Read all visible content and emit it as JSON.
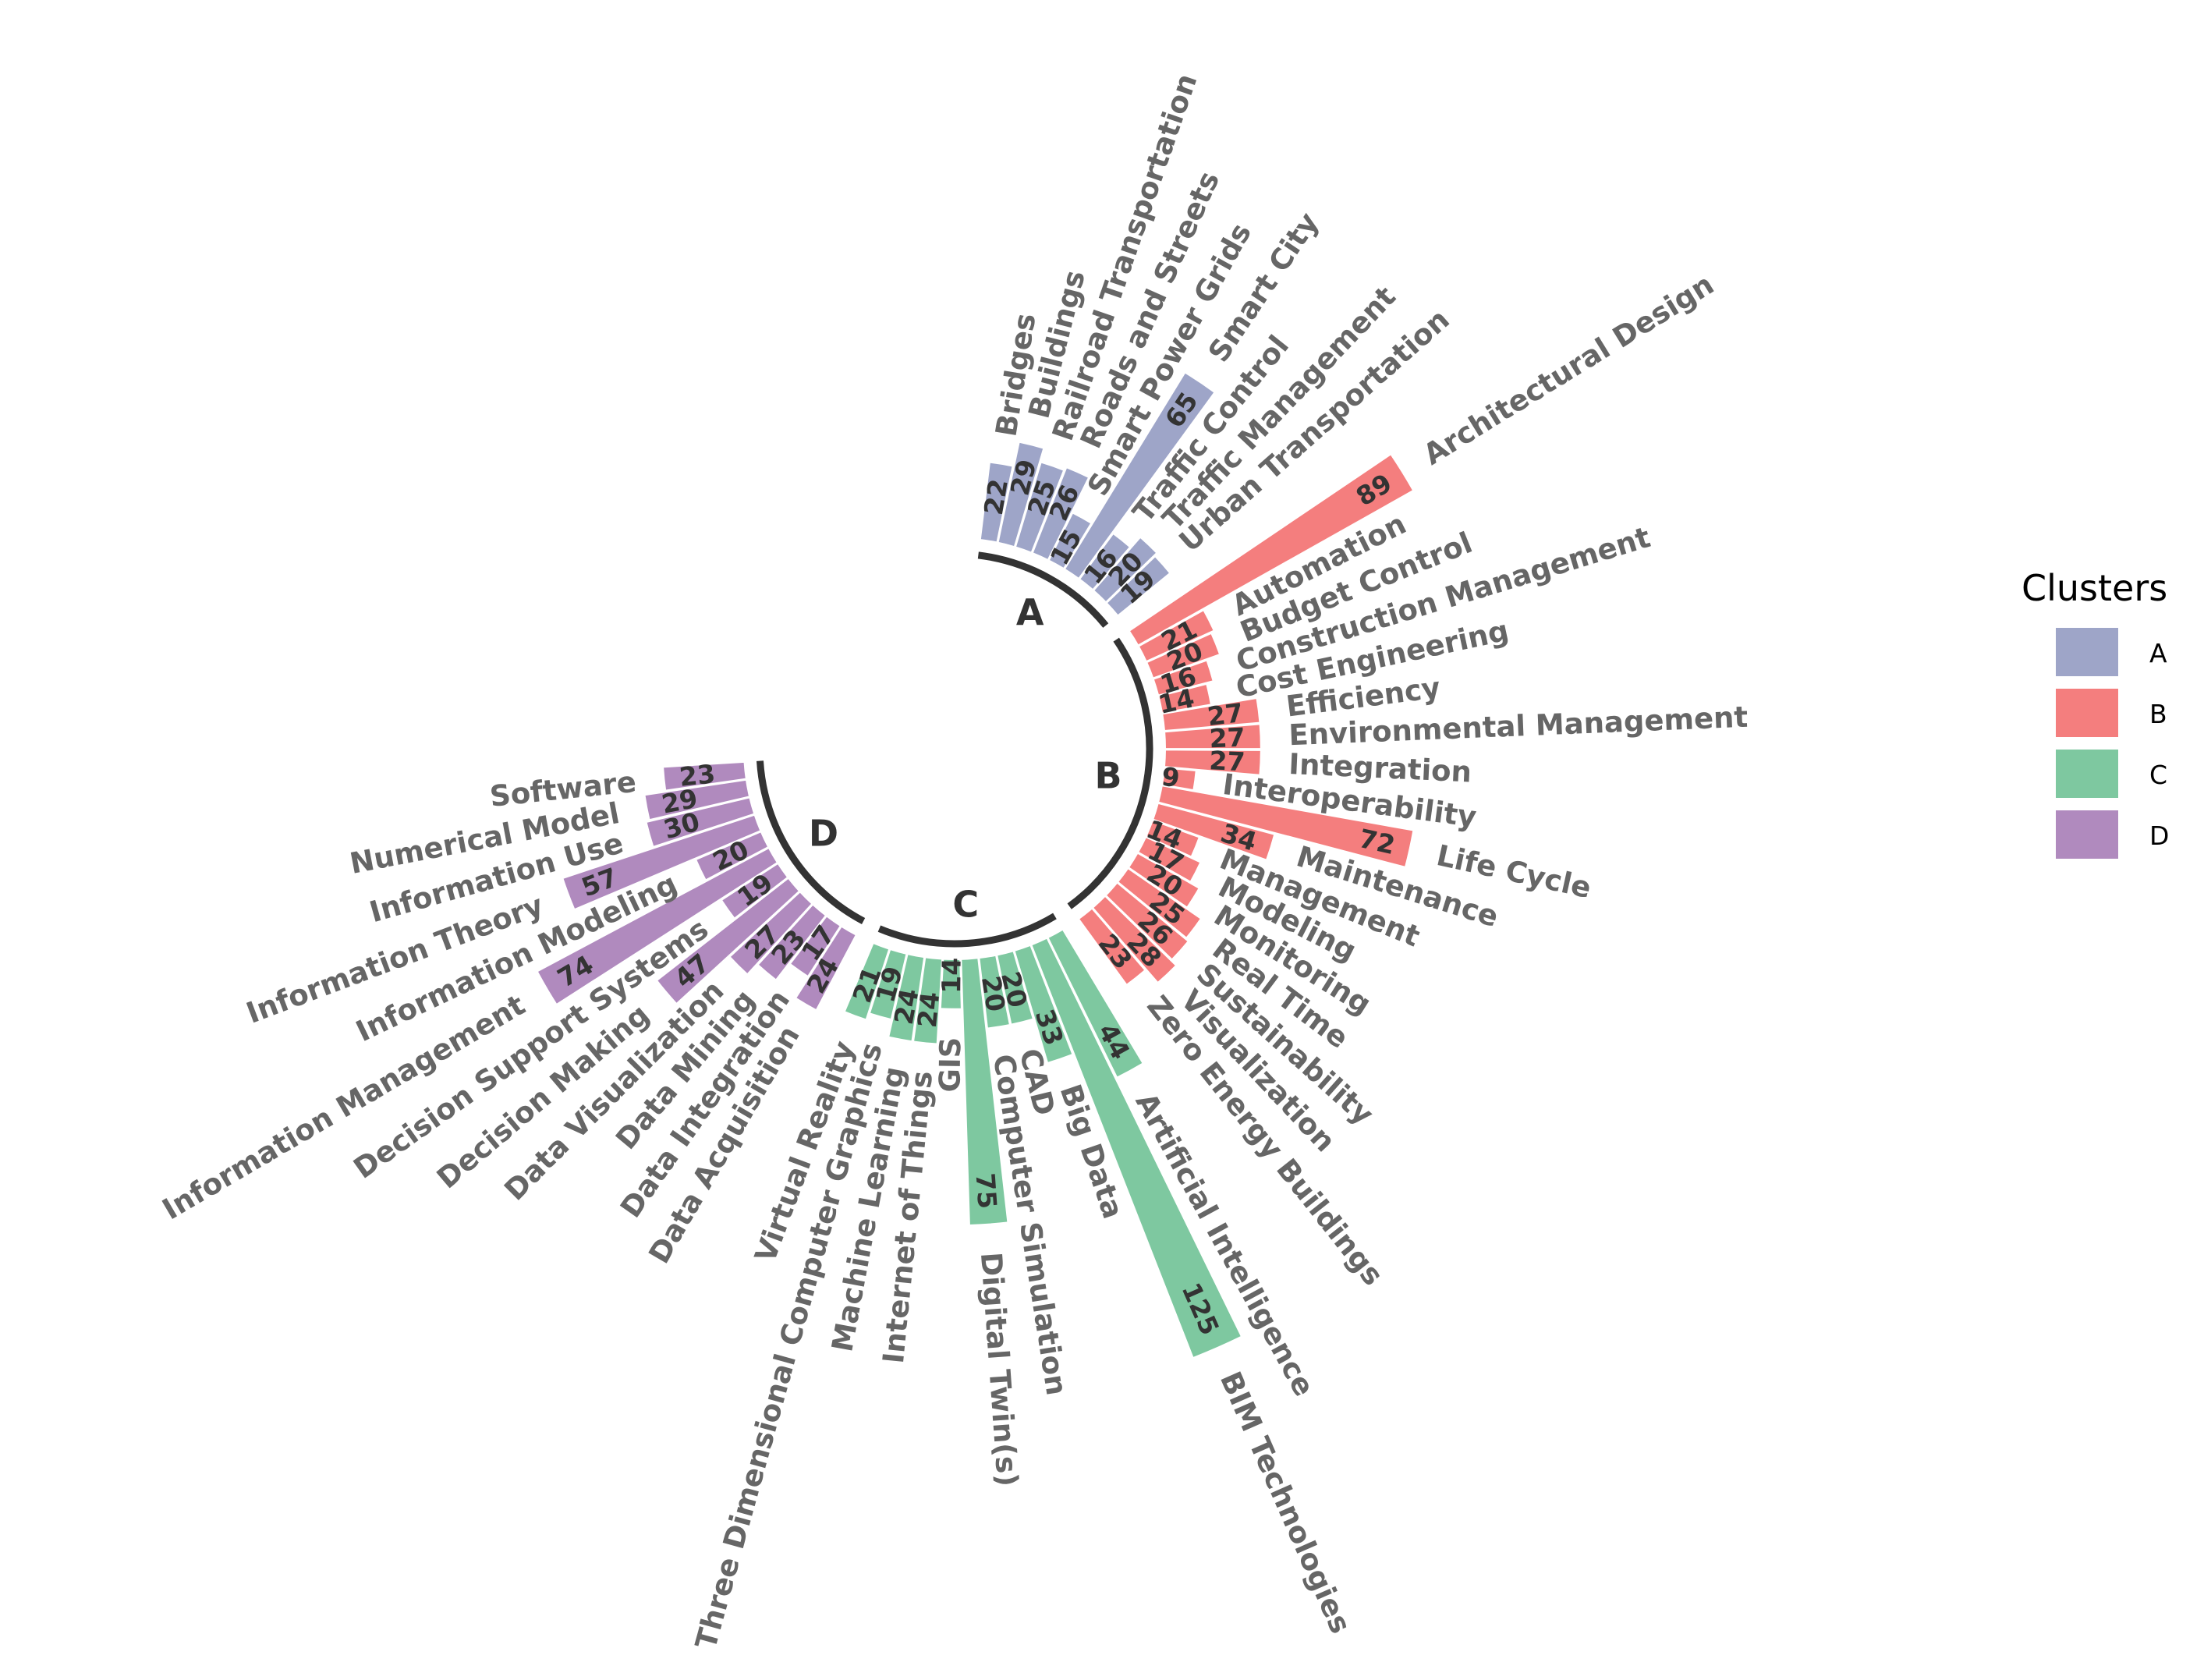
{
  "chart_data": {
    "type": "bar",
    "subtype": "circular-barplot",
    "title": "",
    "legend": {
      "title": "Clusters",
      "position": "right"
    },
    "colors": {
      "A": "#9EA5C8",
      "B": "#F47E7E",
      "C": "#7EC8A0",
      "D": "#B08ABE"
    },
    "groups": [
      {
        "name": "A",
        "items": [
          {
            "label": "Bridges",
            "value": 22
          },
          {
            "label": "Buildings",
            "value": 29
          },
          {
            "label": "Railroad Transportation",
            "value": 25
          },
          {
            "label": "Roads and Streets",
            "value": 26
          },
          {
            "label": "Smart Power Grids",
            "value": 15
          },
          {
            "label": "Smart City",
            "value": 65
          },
          {
            "label": "Traffic Control",
            "value": 16
          },
          {
            "label": "Traffic Management",
            "value": 20
          },
          {
            "label": "Urban Transportation",
            "value": 19
          }
        ]
      },
      {
        "name": "B",
        "items": [
          {
            "label": "Architectural Design",
            "value": 89
          },
          {
            "label": "Automation",
            "value": 21
          },
          {
            "label": "Budget Control",
            "value": 20
          },
          {
            "label": "Construction Management",
            "value": 16
          },
          {
            "label": "Cost Engineering",
            "value": 14
          },
          {
            "label": "Efficiency",
            "value": 27
          },
          {
            "label": "Environmental Management",
            "value": 27
          },
          {
            "label": "Integration",
            "value": 27
          },
          {
            "label": "Interoperability",
            "value": 9
          },
          {
            "label": "Life Cycle",
            "value": 72
          },
          {
            "label": "Maintenance",
            "value": 34
          },
          {
            "label": "Management",
            "value": 14
          },
          {
            "label": "Modeling",
            "value": 17
          },
          {
            "label": "Monitoring",
            "value": 20
          },
          {
            "label": "Real Time",
            "value": 25
          },
          {
            "label": "Sustainability",
            "value": 26
          },
          {
            "label": "Visualization",
            "value": 28
          },
          {
            "label": "Zero Energy Buildings",
            "value": 23
          }
        ]
      },
      {
        "name": "C",
        "items": [
          {
            "label": "Artificial Intelligence",
            "value": 44
          },
          {
            "label": "BIM Technologies",
            "value": 125
          },
          {
            "label": "Big Data",
            "value": 33
          },
          {
            "label": "CAD",
            "value": 20
          },
          {
            "label": "Computer Simulation",
            "value": 20
          },
          {
            "label": "Digital Twin(s)",
            "value": 75
          },
          {
            "label": "GIS",
            "value": 14
          },
          {
            "label": "Internet of Things",
            "value": 24
          },
          {
            "label": "Machine Learning",
            "value": 24
          },
          {
            "label": "Three Dimensional Computer Graphics",
            "value": 19
          },
          {
            "label": "Virtual Reality",
            "value": 21
          }
        ]
      },
      {
        "name": "D",
        "items": [
          {
            "label": "Data Acquisition",
            "value": 24
          },
          {
            "label": "Data Integration",
            "value": 17
          },
          {
            "label": "Data Mining",
            "value": 23
          },
          {
            "label": "Data Visualization",
            "value": 27
          },
          {
            "label": "Decision Making",
            "value": 47
          },
          {
            "label": "Decision Support Systems",
            "value": 19
          },
          {
            "label": "Information Management",
            "value": 74
          },
          {
            "label": "Information Modeling",
            "value": 20
          },
          {
            "label": "Information Theory",
            "value": 57
          },
          {
            "label": "Information Use",
            "value": 30
          },
          {
            "label": "Numerical Model",
            "value": 29
          },
          {
            "label": "Software",
            "value": 23
          }
        ]
      }
    ]
  }
}
